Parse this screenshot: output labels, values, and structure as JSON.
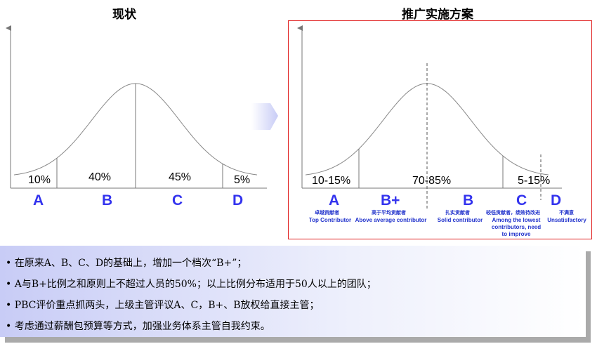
{
  "left": {
    "title": "现状",
    "segments": [
      {
        "grade": "A",
        "percent": "10%"
      },
      {
        "grade": "B",
        "percent": "40%"
      },
      {
        "grade": "C",
        "percent": "45%"
      },
      {
        "grade": "D",
        "percent": "5%"
      }
    ]
  },
  "right": {
    "title": "推广实施方案",
    "percents": [
      "10-15%",
      "70-85%",
      "5-15%"
    ],
    "grades": [
      {
        "grade": "A",
        "zh": "卓越贡献者",
        "en": "Top Contributor"
      },
      {
        "grade": "B+",
        "zh": "高于平均贡献者",
        "en": "Above average contributor"
      },
      {
        "grade": "B",
        "zh": "扎实贡献者",
        "en": "Solid contributor"
      },
      {
        "grade": "C",
        "zh": "较低贡献者，绩效待改进",
        "en": "Among the lowest contributors, need to improve"
      },
      {
        "grade": "D",
        "zh": "不满意",
        "en": "Unsatisfactory"
      }
    ]
  },
  "notes": [
    "• 在原来A、B、C、D的基础上，增加一个档次“B+”；",
    "• A与B+比例之和原则上不超过人员的50%；以上比例分布适用于50人以上的团队；",
    "• PBC评价重点抓两头，上级主管评议A、C，B+、B放权给直接主管；",
    "• 考虑通过薪酬包预算等方式，加强业务体系主管自我约束。"
  ],
  "colors": {
    "grade": "#3333ee",
    "frame": "#e02020",
    "arrow": "#c8ccf6"
  }
}
